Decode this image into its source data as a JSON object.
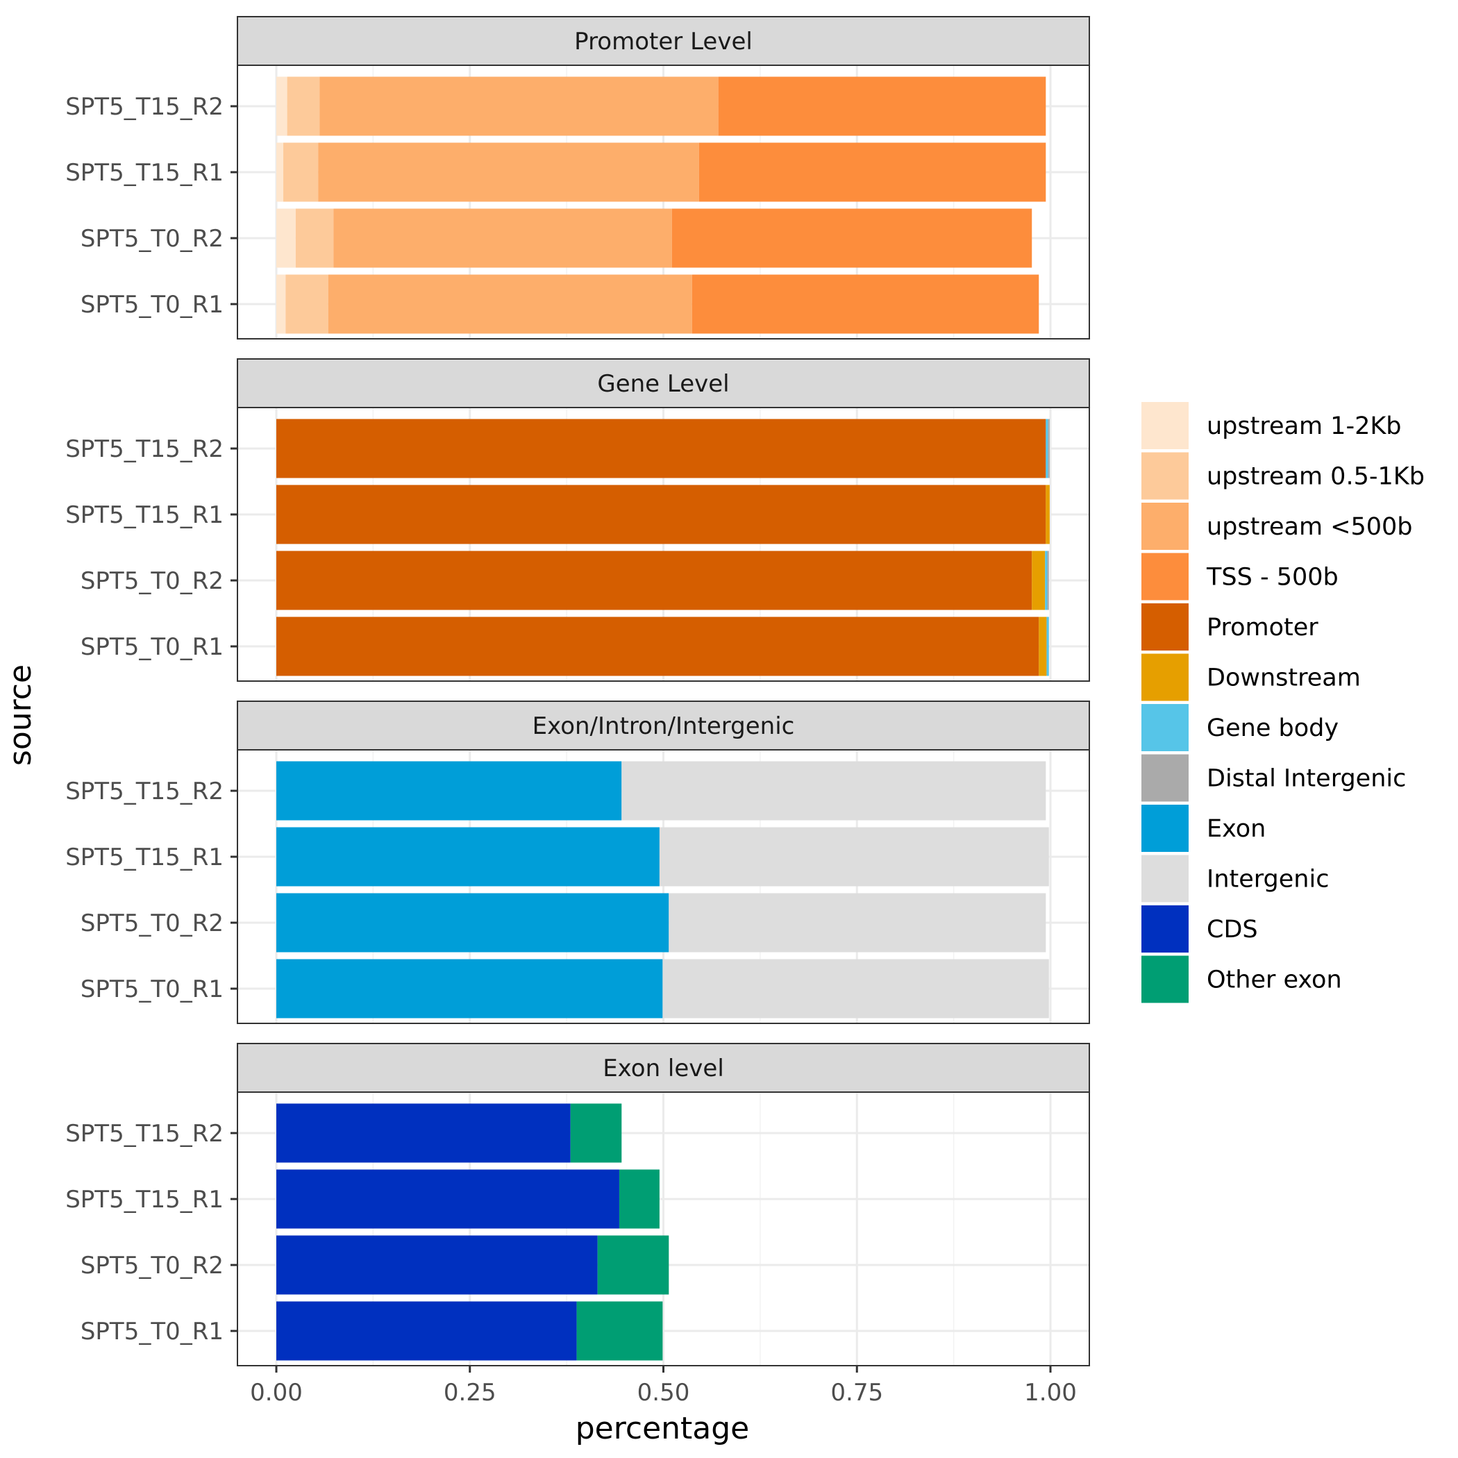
{
  "chart_data": {
    "type": "bar",
    "orientation": "horizontal",
    "stacked": true,
    "xlabel": "percentage",
    "ylabel": "source",
    "xlim": [
      0,
      1
    ],
    "x_ticks": [
      0,
      0.25,
      0.5,
      0.75,
      1
    ],
    "x_tick_labels": [
      "0.00",
      "0.25",
      "0.50",
      "0.75",
      "1.00"
    ],
    "grid": true,
    "legend_position": "right",
    "categories": [
      "SPT5_T15_R2",
      "SPT5_T15_R1",
      "SPT5_T0_R2",
      "SPT5_T0_R1"
    ],
    "legend": [
      {
        "key": "up12",
        "label": "upstream 1-2Kb",
        "color": "#FEE6CE"
      },
      {
        "key": "up051",
        "label": "upstream 0.5-1Kb",
        "color": "#FDCA9A"
      },
      {
        "key": "up500",
        "label": "upstream <500b",
        "color": "#FDAE6B"
      },
      {
        "key": "tss",
        "label": "TSS - 500b",
        "color": "#FD8D3C"
      },
      {
        "key": "promoter",
        "label": "Promoter",
        "color": "#D55E00"
      },
      {
        "key": "downstream",
        "label": "Downstream",
        "color": "#E69F00"
      },
      {
        "key": "genebody",
        "label": "Gene body",
        "color": "#56C5E8"
      },
      {
        "key": "distal",
        "label": "Distal Intergenic",
        "color": "#AAAAAA"
      },
      {
        "key": "exon",
        "label": "Exon",
        "color": "#009ED8"
      },
      {
        "key": "intergenic",
        "label": "Intergenic",
        "color": "#DDDDDD"
      },
      {
        "key": "cds",
        "label": "CDS",
        "color": "#0030BF"
      },
      {
        "key": "otherexon",
        "label": "Other exon",
        "color": "#009E73"
      }
    ],
    "panels": [
      {
        "title": "Promoter Level",
        "series": [
          {
            "key": "up12",
            "values": [
              0.014,
              0.009,
              0.025,
              0.012
            ]
          },
          {
            "key": "up051",
            "values": [
              0.042,
              0.045,
              0.049,
              0.055
            ]
          },
          {
            "key": "up500",
            "values": [
              0.515,
              0.492,
              0.437,
              0.47
            ]
          },
          {
            "key": "tss",
            "values": [
              0.423,
              0.448,
              0.465,
              0.448
            ]
          }
        ]
      },
      {
        "title": "Gene Level",
        "series": [
          {
            "key": "promoter",
            "values": [
              0.994,
              0.994,
              0.976,
              0.985
            ]
          },
          {
            "key": "downstream",
            "values": [
              0.0,
              0.005,
              0.017,
              0.01
            ]
          },
          {
            "key": "genebody",
            "values": [
              0.003,
              0.0,
              0.003,
              0.003
            ]
          },
          {
            "key": "distal",
            "values": [
              0.002,
              0.0,
              0.002,
              0.0
            ]
          }
        ]
      },
      {
        "title": "Exon/Intron/Intergenic",
        "series": [
          {
            "key": "exon",
            "values": [
              0.446,
              0.495,
              0.507,
              0.499
            ]
          },
          {
            "key": "intergenic",
            "values": [
              0.548,
              0.503,
              0.487,
              0.499
            ]
          }
        ]
      },
      {
        "title": "Exon level",
        "series": [
          {
            "key": "cds",
            "values": [
              0.38,
              0.443,
              0.415,
              0.388
            ]
          },
          {
            "key": "otherexon",
            "values": [
              0.066,
              0.052,
              0.092,
              0.111
            ]
          }
        ]
      }
    ]
  }
}
